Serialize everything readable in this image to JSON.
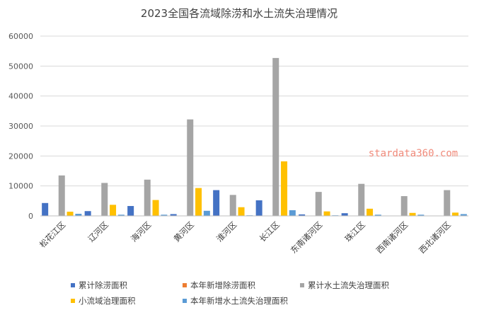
{
  "chart_data": {
    "type": "bar",
    "title": "2023全国各流域除涝和水土流失治理情况",
    "categories": [
      "松花江区",
      "辽河区",
      "海河区",
      "黄河区",
      "淮河区",
      "长江区",
      "东南诸河区",
      "珠江区",
      "西南诸河区",
      "西北诸河区"
    ],
    "series": [
      {
        "name": "累计除涝面积",
        "color": "#4472c4",
        "values": [
          4300,
          1600,
          3300,
          600,
          8600,
          5200,
          500,
          900,
          0,
          0
        ]
      },
      {
        "name": "本年新增除涝面积",
        "color": "#ed7d31",
        "values": [
          0,
          0,
          0,
          0,
          0,
          0,
          0,
          0,
          0,
          0
        ]
      },
      {
        "name": "累计水土流失治理面积",
        "color": "#a5a5a5",
        "values": [
          13500,
          11000,
          12100,
          32200,
          7000,
          52700,
          8000,
          10700,
          6600,
          8600
        ]
      },
      {
        "name": "小流域治理面积",
        "color": "#ffc000",
        "values": [
          1400,
          3700,
          5300,
          9300,
          2900,
          18200,
          1500,
          2400,
          1000,
          1100
        ]
      },
      {
        "name": "本年新增水土流失治理面积",
        "color": "#5b9bd5",
        "values": [
          700,
          400,
          400,
          1700,
          200,
          1900,
          200,
          400,
          400,
          600
        ]
      }
    ],
    "yticks": [
      "0",
      "10000",
      "20000",
      "30000",
      "40000",
      "50000",
      "60000"
    ],
    "ylim": [
      0,
      60000
    ],
    "grid": true,
    "legend": "bottom",
    "watermark": "stardata360.com"
  }
}
